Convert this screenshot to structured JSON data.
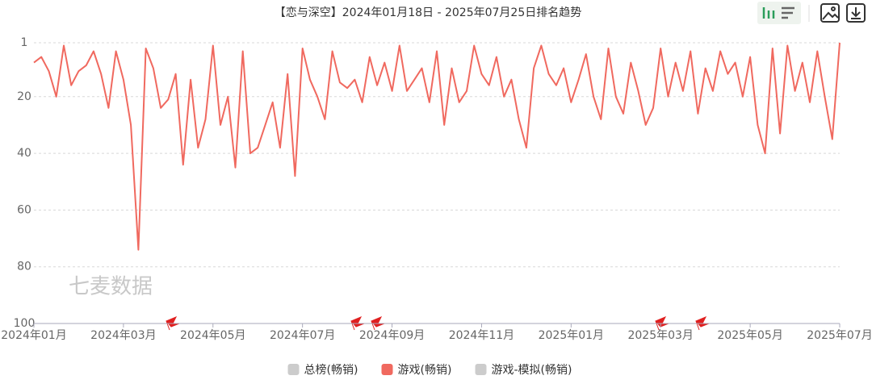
{
  "chart_data": {
    "type": "line",
    "title": "【恋与深空】2024年01月18日 - 2025年07月25日排名趋势",
    "watermark": "七麦数据",
    "categories": [
      "2024年01月",
      null,
      null,
      null,
      null,
      null,
      null,
      null,
      null,
      null,
      null,
      null,
      "2024年03月",
      null,
      null,
      null,
      null,
      null,
      null,
      null,
      null,
      null,
      null,
      null,
      "2024年05月",
      null,
      null,
      null,
      null,
      null,
      null,
      null,
      null,
      null,
      null,
      null,
      "2024年07月",
      null,
      null,
      null,
      null,
      null,
      null,
      null,
      null,
      null,
      null,
      null,
      "2024年09月",
      null,
      null,
      null,
      null,
      null,
      null,
      null,
      null,
      null,
      null,
      null,
      "2024年11月",
      null,
      null,
      null,
      null,
      null,
      null,
      null,
      null,
      null,
      null,
      null,
      "2025年01月",
      null,
      null,
      null,
      null,
      null,
      null,
      null,
      null,
      null,
      null,
      null,
      "2025年03月",
      null,
      null,
      null,
      null,
      null,
      null,
      null,
      null,
      null,
      null,
      null,
      "2025年05月",
      null,
      null,
      null,
      null,
      null,
      null,
      null,
      null,
      null,
      null,
      null,
      "2025年07月"
    ],
    "series": [
      {
        "name": "游戏(畅销)",
        "color": "#f0695f",
        "values": [
          8,
          6,
          11,
          20,
          2,
          16,
          11,
          9,
          4,
          12,
          24,
          4,
          14,
          30,
          74,
          3,
          10,
          24,
          21,
          12,
          44,
          14,
          38,
          28,
          2,
          30,
          20,
          45,
          4,
          40,
          38,
          30,
          22,
          38,
          12,
          48,
          3,
          14,
          20,
          28,
          4,
          15,
          17,
          14,
          22,
          6,
          16,
          8,
          18,
          2,
          18,
          14,
          10,
          22,
          4,
          30,
          10,
          22,
          18,
          2,
          12,
          16,
          6,
          20,
          14,
          28,
          38,
          10,
          2,
          12,
          16,
          10,
          22,
          14,
          5,
          20,
          28,
          3,
          20,
          26,
          8,
          18,
          30,
          24,
          3,
          20,
          8,
          18,
          4,
          26,
          10,
          18,
          4,
          12,
          8,
          20,
          6,
          30,
          40,
          3,
          33,
          2,
          18,
          8,
          22,
          4,
          20,
          35,
          1
        ]
      }
    ],
    "legend_items": [
      {
        "name": "总榜(畅销)",
        "color": "#cccccc"
      },
      {
        "name": "游戏(畅销)",
        "color": "#f0695f"
      },
      {
        "name": "游戏-模拟(畅销)",
        "color": "#cccccc"
      }
    ],
    "ylim": [
      100,
      1
    ],
    "yticks": [
      1,
      20,
      40,
      60,
      80,
      100
    ],
    "grid": true
  }
}
